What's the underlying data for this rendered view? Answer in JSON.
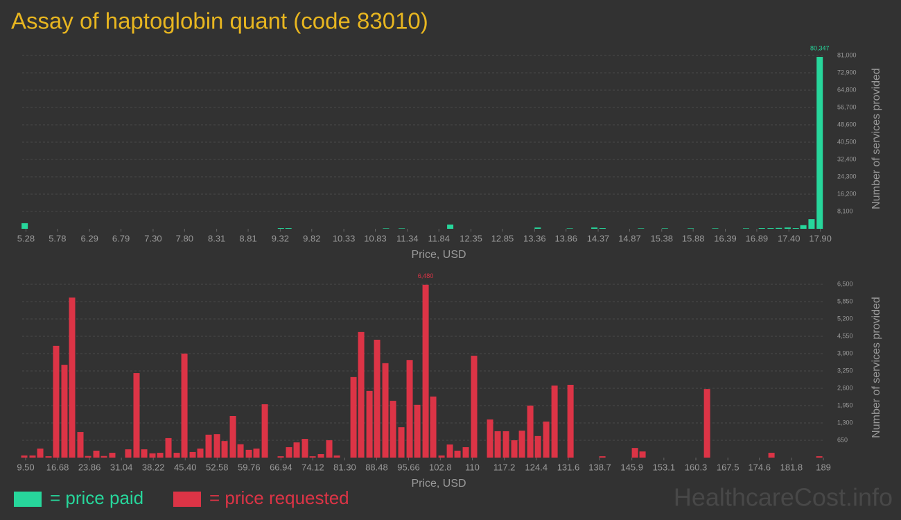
{
  "title": "Assay of haptoglobin quant (code 83010)",
  "watermark": "HealthcareCost.info",
  "chart_data": [
    {
      "type": "bar",
      "xlabel": "Price, USD",
      "ylabel": "Number of services provided",
      "xlim": [
        5.22,
        17.97
      ],
      "ylim": [
        0,
        81000
      ],
      "grid": true,
      "xticks": [
        5.28,
        5.78,
        6.29,
        6.79,
        {
          "value": 7.3,
          "label": "7.30"
        },
        {
          "value": 7.8,
          "label": "7.80"
        },
        8.31,
        8.81,
        9.32,
        9.82,
        10.33,
        10.83,
        11.34,
        11.84,
        12.35,
        12.85,
        13.36,
        13.86,
        14.37,
        14.87,
        15.38,
        15.88,
        16.39,
        16.89,
        {
          "value": 17.4,
          "label": "17.40"
        },
        {
          "value": 17.9,
          "label": "17.90"
        }
      ],
      "yticks": [
        {
          "value": 8100,
          "label": "8,100"
        },
        {
          "value": 16200,
          "label": "16,200"
        },
        {
          "value": 24300,
          "label": "24,300"
        },
        {
          "value": 32400,
          "label": "32,400"
        },
        {
          "value": 40500,
          "label": "40,500"
        },
        {
          "value": 48600,
          "label": "48,600"
        },
        {
          "value": 56700,
          "label": "56,700"
        },
        {
          "value": 64800,
          "label": "64,800"
        },
        {
          "value": 72900,
          "label": "72,900"
        },
        {
          "value": 81000,
          "label": "81,000"
        }
      ],
      "series": [
        {
          "name": "= price paid",
          "color": "#27d69b",
          "x": [
            5.26,
            9.33,
            9.45,
            11.0,
            11.25,
            12.02,
            13.41,
            13.92,
            14.31,
            14.44,
            15.05,
            15.43,
            15.84,
            16.23,
            16.72,
            16.97,
            17.11,
            17.24,
            17.38,
            17.51,
            17.63,
            17.76,
            17.89
          ],
          "values": [
            2600,
            300,
            300,
            200,
            200,
            2000,
            600,
            200,
            600,
            300,
            200,
            200,
            200,
            200,
            200,
            300,
            300,
            400,
            600,
            300,
            1700,
            4500,
            80347
          ],
          "value_labels": [
            null,
            null,
            null,
            null,
            null,
            null,
            null,
            null,
            null,
            null,
            null,
            null,
            null,
            null,
            null,
            null,
            null,
            null,
            null,
            null,
            null,
            null,
            "80,347"
          ]
        }
      ]
    },
    {
      "type": "bar",
      "xlabel": "Price, USD",
      "ylabel": "Number of services provided",
      "xlim": [
        8.72,
        189.3
      ],
      "ylim": [
        0,
        6500
      ],
      "grid": true,
      "xticks": [
        {
          "value": 9.5,
          "label": "9.50"
        },
        16.68,
        23.86,
        31.04,
        38.22,
        {
          "value": 45.4,
          "label": "45.40"
        },
        52.58,
        59.76,
        66.94,
        74.12,
        {
          "value": 81.3,
          "label": "81.30"
        },
        88.48,
        95.66,
        102.8,
        110,
        117.2,
        124.4,
        131.6,
        138.7,
        145.9,
        153.1,
        160.3,
        167.5,
        174.6,
        181.8,
        189
      ],
      "yticks": [
        650,
        {
          "value": 1300,
          "label": "1,300"
        },
        {
          "value": 1950,
          "label": "1,950"
        },
        {
          "value": 2600,
          "label": "2,600"
        },
        {
          "value": 3250,
          "label": "3,250"
        },
        {
          "value": 3900,
          "label": "3,900"
        },
        {
          "value": 4550,
          "label": "4,550"
        },
        {
          "value": 5200,
          "label": "5,200"
        },
        {
          "value": 5850,
          "label": "5,850"
        },
        {
          "value": 6500,
          "label": "6,500"
        }
      ],
      "series": [
        {
          "name": "= price requested",
          "color": "#dc3446",
          "x": [
            9.19,
            11.06,
            12.78,
            14.65,
            16.36,
            18.23,
            19.95,
            21.82,
            23.54,
            25.41,
            27.12,
            28.99,
            32.58,
            34.45,
            36.17,
            38.04,
            39.76,
            41.63,
            43.5,
            45.22,
            47.09,
            48.8,
            50.67,
            52.55,
            54.26,
            56.13,
            57.85,
            59.72,
            61.43,
            63.31,
            66.89,
            68.76,
            70.48,
            72.35,
            74.07,
            75.94,
            77.81,
            79.53,
            83.27,
            84.99,
            86.86,
            88.57,
            90.44,
            92.16,
            94.03,
            95.9,
            97.62,
            99.49,
            101.2,
            103.08,
            104.95,
            106.66,
            108.53,
            110.4,
            113.99,
            115.71,
            117.58,
            119.45,
            121.17,
            123.04,
            124.76,
            126.63,
            128.5,
            132.09,
            139.26,
            146.59,
            148.3,
            162.81,
            177.31,
            188.07
          ],
          "values": [
            80,
            80,
            340,
            50,
            4190,
            3480,
            6000,
            960,
            60,
            260,
            60,
            180,
            310,
            3170,
            310,
            160,
            180,
            730,
            180,
            3900,
            210,
            340,
            860,
            880,
            620,
            1560,
            500,
            290,
            340,
            2000,
            50,
            390,
            570,
            700,
            50,
            130,
            650,
            80,
            3020,
            4710,
            2500,
            4420,
            3540,
            2130,
            1140,
            3660,
            1980,
            6480,
            2290,
            80,
            490,
            260,
            390,
            3820,
            1430,
            990,
            990,
            650,
            1010,
            1950,
            810,
            1350,
            2700,
            2730,
            50,
            360,
            230,
            2570,
            180,
            50
          ],
          "value_labels": [
            null,
            null,
            null,
            null,
            null,
            null,
            null,
            null,
            null,
            null,
            null,
            null,
            null,
            null,
            null,
            null,
            null,
            null,
            null,
            null,
            null,
            null,
            null,
            null,
            null,
            null,
            null,
            null,
            null,
            null,
            null,
            null,
            null,
            null,
            null,
            null,
            null,
            null,
            null,
            null,
            null,
            null,
            null,
            null,
            null,
            null,
            null,
            "6,480",
            null,
            null,
            null,
            null,
            null,
            null,
            null,
            null,
            null,
            null,
            null,
            null,
            null,
            null,
            null,
            null,
            null,
            null,
            null,
            null,
            null,
            null
          ]
        }
      ]
    }
  ]
}
